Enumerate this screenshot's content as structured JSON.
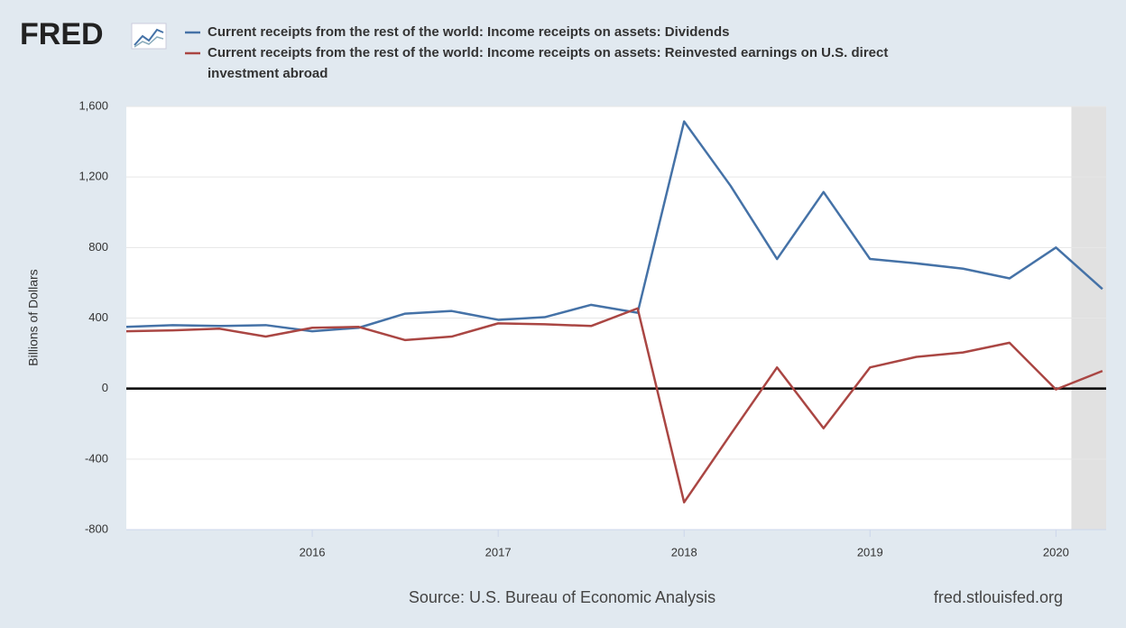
{
  "brand": "FRED",
  "chart_data": {
    "type": "line",
    "x": [
      2015,
      2015.25,
      2015.5,
      2015.75,
      2016,
      2016.25,
      2016.5,
      2016.75,
      2017,
      2017.25,
      2017.5,
      2017.75,
      2018,
      2018.25,
      2018.5,
      2018.75,
      2019,
      2019.25,
      2019.5,
      2019.75,
      2020,
      2020.25
    ],
    "series": [
      {
        "name": "Current receipts from the rest of the world: Income receipts on assets: Dividends",
        "color": "#4572a7",
        "values": [
          350,
          360,
          355,
          360,
          325,
          345,
          425,
          440,
          390,
          405,
          475,
          430,
          1515,
          1150,
          735,
          1115,
          735,
          710,
          680,
          625,
          800,
          565
        ]
      },
      {
        "name": "Current receipts from the rest of the world: Income receipts on assets: Reinvested earnings on U.S. direct investment abroad",
        "color": "#aa4643",
        "values": [
          325,
          330,
          340,
          295,
          345,
          350,
          275,
          295,
          370,
          365,
          355,
          455,
          -645,
          -260,
          120,
          -225,
          120,
          180,
          205,
          260,
          -5,
          100
        ]
      }
    ],
    "xlim": [
      2015,
      2020.27
    ],
    "xticks": [
      2016,
      2017,
      2018,
      2019,
      2020
    ],
    "ylim": [
      -800,
      1600
    ],
    "yticks": [
      {
        "value": -800,
        "label": "-800"
      },
      {
        "value": -400,
        "label": "-400"
      },
      0,
      400,
      800,
      {
        "value": 1200,
        "label": "1,200"
      },
      {
        "value": 1600,
        "label": "1,600"
      }
    ],
    "ylabel": "Billions of Dollars",
    "grid": true,
    "recessions": [
      [
        2020.083,
        2020.27
      ]
    ],
    "source": "Source: U.S. Bureau of Economic Analysis",
    "url": "fred.stlouisfed.org"
  }
}
